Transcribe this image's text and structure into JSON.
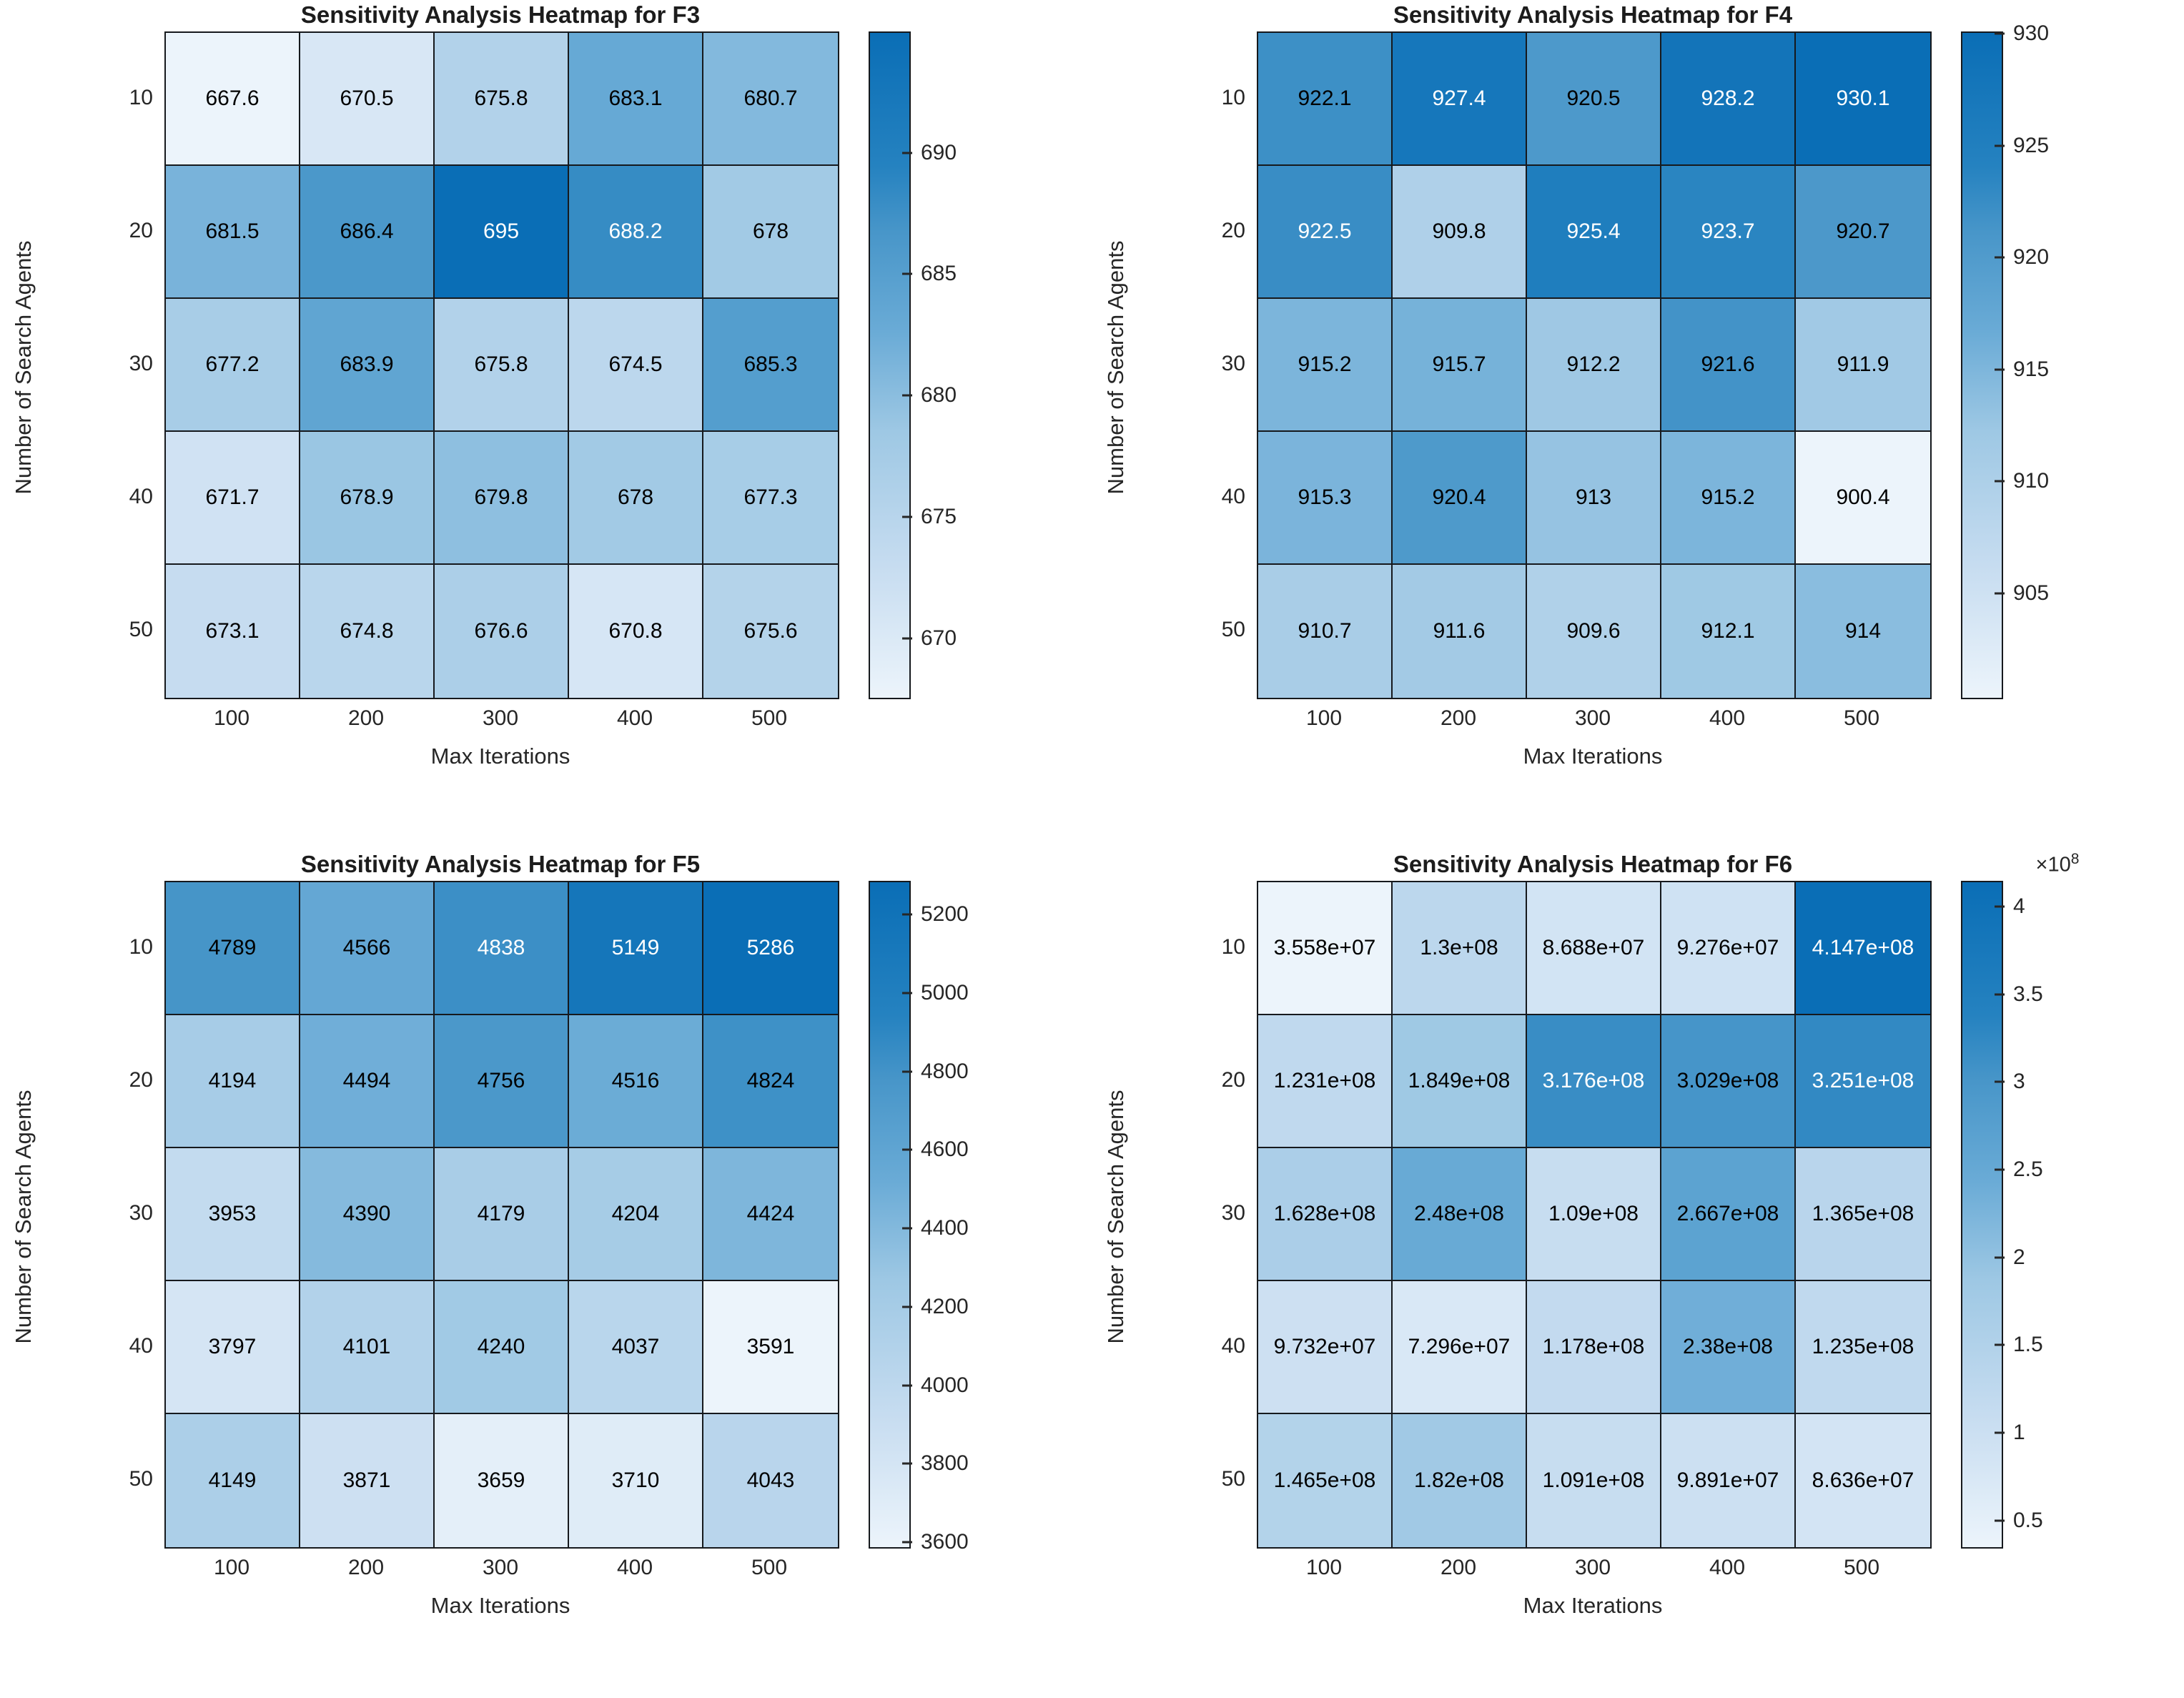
{
  "page": {
    "background": "#ffffff"
  },
  "styles": {
    "grid_line_color": "#16191d",
    "axis_text_color": "#262626",
    "title_color": "#1c1c1c",
    "cell_text_dark": "#000000",
    "cell_text_light": "#ffffff",
    "luma_white_threshold": 0.489
  },
  "colormap": {
    "name": "blues",
    "stops": [
      {
        "t": 0.0,
        "color": "#ecf4fb"
      },
      {
        "t": 0.2,
        "color": "#c6dcf0"
      },
      {
        "t": 0.4,
        "color": "#9ec8e4"
      },
      {
        "t": 0.55,
        "color": "#6aabd6"
      },
      {
        "t": 0.7,
        "color": "#4896c9"
      },
      {
        "t": 0.8,
        "color": "#2582c0"
      },
      {
        "t": 1.0,
        "color": "#0a6eb6"
      }
    ]
  },
  "chart_data": [
    {
      "type": "heatmap",
      "title": "Sensitivity Analysis Heatmap for F3",
      "xlabel": "Max Iterations",
      "ylabel": "Number of Search Agents",
      "x_categories": [
        "100",
        "200",
        "300",
        "400",
        "500"
      ],
      "y_categories": [
        "10",
        "20",
        "30",
        "40",
        "50"
      ],
      "values": [
        [
          667.6,
          670.5,
          675.8,
          683.1,
          680.7
        ],
        [
          681.5,
          686.4,
          695.0,
          688.2,
          678.0
        ],
        [
          677.2,
          683.9,
          675.8,
          674.5,
          685.3
        ],
        [
          671.7,
          678.9,
          679.8,
          678.0,
          677.3
        ],
        [
          673.1,
          674.8,
          676.6,
          670.8,
          675.6
        ]
      ],
      "cell_labels": [
        [
          "667.6",
          "670.5",
          "675.8",
          "683.1",
          "680.7"
        ],
        [
          "681.5",
          "686.4",
          "695",
          "688.2",
          "678"
        ],
        [
          "677.2",
          "683.9",
          "675.8",
          "674.5",
          "685.3"
        ],
        [
          "671.7",
          "678.9",
          "679.8",
          "678",
          "677.3"
        ],
        [
          "673.1",
          "674.8",
          "676.6",
          "670.8",
          "675.6"
        ]
      ],
      "color_range": [
        667.6,
        695.0
      ],
      "colorbar_ticks": [
        {
          "value": 670,
          "label": "670"
        },
        {
          "value": 675,
          "label": "675"
        },
        {
          "value": 680,
          "label": "680"
        },
        {
          "value": 685,
          "label": "685"
        },
        {
          "value": 690,
          "label": "690"
        }
      ]
    },
    {
      "type": "heatmap",
      "title": "Sensitivity Analysis Heatmap for F4",
      "xlabel": "Max Iterations",
      "ylabel": "Number of Search Agents",
      "x_categories": [
        "100",
        "200",
        "300",
        "400",
        "500"
      ],
      "y_categories": [
        "10",
        "20",
        "30",
        "40",
        "50"
      ],
      "values": [
        [
          922.1,
          927.4,
          920.5,
          928.2,
          930.1
        ],
        [
          922.5,
          909.8,
          925.4,
          923.7,
          920.7
        ],
        [
          915.2,
          915.7,
          912.2,
          921.6,
          911.9
        ],
        [
          915.3,
          920.4,
          913.0,
          915.2,
          900.4
        ],
        [
          910.7,
          911.6,
          909.6,
          912.1,
          914.0
        ]
      ],
      "cell_labels": [
        [
          "922.1",
          "927.4",
          "920.5",
          "928.2",
          "930.1"
        ],
        [
          "922.5",
          "909.8",
          "925.4",
          "923.7",
          "920.7"
        ],
        [
          "915.2",
          "915.7",
          "912.2",
          "921.6",
          "911.9"
        ],
        [
          "915.3",
          "920.4",
          "913",
          "915.2",
          "900.4"
        ],
        [
          "910.7",
          "911.6",
          "909.6",
          "912.1",
          "914"
        ]
      ],
      "color_range": [
        900.4,
        930.1
      ],
      "colorbar_ticks": [
        {
          "value": 905,
          "label": "905"
        },
        {
          "value": 910,
          "label": "910"
        },
        {
          "value": 915,
          "label": "915"
        },
        {
          "value": 920,
          "label": "920"
        },
        {
          "value": 925,
          "label": "925"
        },
        {
          "value": 930,
          "label": "930"
        }
      ]
    },
    {
      "type": "heatmap",
      "title": "Sensitivity Analysis Heatmap for F5",
      "xlabel": "Max Iterations",
      "ylabel": "Number of Search Agents",
      "x_categories": [
        "100",
        "200",
        "300",
        "400",
        "500"
      ],
      "y_categories": [
        "10",
        "20",
        "30",
        "40",
        "50"
      ],
      "values": [
        [
          4789,
          4566,
          4838,
          5149,
          5286
        ],
        [
          4194,
          4494,
          4756,
          4516,
          4824
        ],
        [
          3953,
          4390,
          4179,
          4204,
          4424
        ],
        [
          3797,
          4101,
          4240,
          4037,
          3591
        ],
        [
          4149,
          3871,
          3659,
          3710,
          4043
        ]
      ],
      "cell_labels": [
        [
          "4789",
          "4566",
          "4838",
          "5149",
          "5286"
        ],
        [
          "4194",
          "4494",
          "4756",
          "4516",
          "4824"
        ],
        [
          "3953",
          "4390",
          "4179",
          "4204",
          "4424"
        ],
        [
          "3797",
          "4101",
          "4240",
          "4037",
          "3591"
        ],
        [
          "4149",
          "3871",
          "3659",
          "3710",
          "4043"
        ]
      ],
      "color_range": [
        3591,
        5286
      ],
      "colorbar_ticks": [
        {
          "value": 3600,
          "label": "3600"
        },
        {
          "value": 3800,
          "label": "3800"
        },
        {
          "value": 4000,
          "label": "4000"
        },
        {
          "value": 4200,
          "label": "4200"
        },
        {
          "value": 4400,
          "label": "4400"
        },
        {
          "value": 4600,
          "label": "4600"
        },
        {
          "value": 4800,
          "label": "4800"
        },
        {
          "value": 5000,
          "label": "5000"
        },
        {
          "value": 5200,
          "label": "5200"
        }
      ]
    },
    {
      "type": "heatmap",
      "title": "Sensitivity Analysis Heatmap for F6",
      "xlabel": "Max Iterations",
      "ylabel": "Number of Search Agents",
      "x_categories": [
        "100",
        "200",
        "300",
        "400",
        "500"
      ],
      "y_categories": [
        "10",
        "20",
        "30",
        "40",
        "50"
      ],
      "values": [
        [
          35580000,
          130000000,
          86880000,
          92760000,
          414700000
        ],
        [
          123100000,
          184900000,
          317600000,
          302900000,
          325100000
        ],
        [
          162800000,
          248000000,
          109000000,
          266700000,
          136500000
        ],
        [
          97320000,
          72960000,
          117800000,
          238000000,
          123500000
        ],
        [
          146500000,
          182000000,
          109100000,
          98910000,
          86360000
        ]
      ],
      "cell_labels": [
        [
          "3.558e+07",
          "1.3e+08",
          "8.688e+07",
          "9.276e+07",
          "4.147e+08"
        ],
        [
          "1.231e+08",
          "1.849e+08",
          "3.176e+08",
          "3.029e+08",
          "3.251e+08"
        ],
        [
          "1.628e+08",
          "2.48e+08",
          "1.09e+08",
          "2.667e+08",
          "1.365e+08"
        ],
        [
          "9.732e+07",
          "7.296e+07",
          "1.178e+08",
          "2.38e+08",
          "1.235e+08"
        ],
        [
          "1.465e+08",
          "1.82e+08",
          "1.091e+08",
          "9.891e+07",
          "8.636e+07"
        ]
      ],
      "color_range": [
        35580000,
        414700000
      ],
      "colorbar_ticks": [
        {
          "value": 50000000,
          "label": "0.5"
        },
        {
          "value": 100000000,
          "label": "1"
        },
        {
          "value": 150000000,
          "label": "1.5"
        },
        {
          "value": 200000000,
          "label": "2"
        },
        {
          "value": 250000000,
          "label": "2.5"
        },
        {
          "value": 300000000,
          "label": "3"
        },
        {
          "value": 350000000,
          "label": "3.5"
        },
        {
          "value": 400000000,
          "label": "4"
        }
      ],
      "colorbar_exponent": {
        "base": "×10",
        "sup": "8"
      }
    }
  ]
}
